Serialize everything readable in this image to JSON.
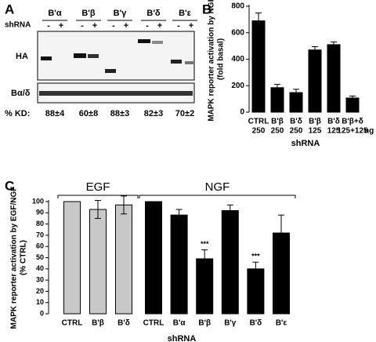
{
  "blot": {
    "panel": "A",
    "column_headers": [
      "B'α",
      "B'β",
      "B'γ",
      "B'δ",
      "B'ε"
    ],
    "shrna_label": "shRNA",
    "signs": [
      "-",
      "+"
    ],
    "rows": [
      "HA",
      "Bα/δ"
    ],
    "kd_label": "% KD:",
    "kd": [
      "88±4",
      "60±8",
      "88±3",
      "82±3",
      "70±2"
    ]
  },
  "chart_data": [
    {
      "type": "bar",
      "panel": "B",
      "y_label": [
        "MAPK reporter activation by NGF",
        "(fold  basal)"
      ],
      "x_label": "shRNA",
      "categories": [
        "CTRL",
        "B'β",
        "B'δ",
        "B'β",
        "B'δ",
        "B'β+δ"
      ],
      "doses": [
        "250",
        "250",
        "250",
        "125",
        "125",
        "125+125"
      ],
      "dose_unit": "ng",
      "values": [
        690,
        185,
        148,
        470,
        510,
        107
      ],
      "errors": [
        60,
        25,
        25,
        25,
        20,
        15
      ],
      "color": "#000000",
      "ylim": [
        0,
        800
      ],
      "yticks": [
        0,
        200,
        400,
        600,
        800
      ]
    },
    {
      "type": "bar",
      "panel": "C",
      "y_label": [
        "MAPK reporter activation by EGF/NGF",
        "(% CTRL)"
      ],
      "x_label": "shRNA",
      "categories": [
        "CTRL",
        "B'β",
        "B'δ",
        "CTRL",
        "B'α",
        "B'β",
        "B'γ",
        "B'δ",
        "B'ε"
      ],
      "series": [
        {
          "name": "EGF",
          "color": "#c8c8c8",
          "values": [
            100,
            93,
            97,
            null,
            null,
            null,
            null,
            null,
            null
          ],
          "errors": [
            0,
            8,
            8,
            null,
            null,
            null,
            null,
            null,
            null
          ]
        },
        {
          "name": "NGF",
          "color": "#000000",
          "values": [
            null,
            null,
            null,
            100,
            88,
            49,
            92,
            40,
            72
          ],
          "errors": [
            null,
            null,
            null,
            0,
            5,
            8,
            5,
            6,
            16
          ],
          "significance": [
            null,
            null,
            null,
            null,
            null,
            "***",
            null,
            "***",
            null
          ]
        }
      ],
      "ylim": [
        0,
        100
      ],
      "yticks": [
        0,
        10,
        20,
        30,
        40,
        50,
        60,
        70,
        80,
        90,
        100
      ]
    }
  ]
}
